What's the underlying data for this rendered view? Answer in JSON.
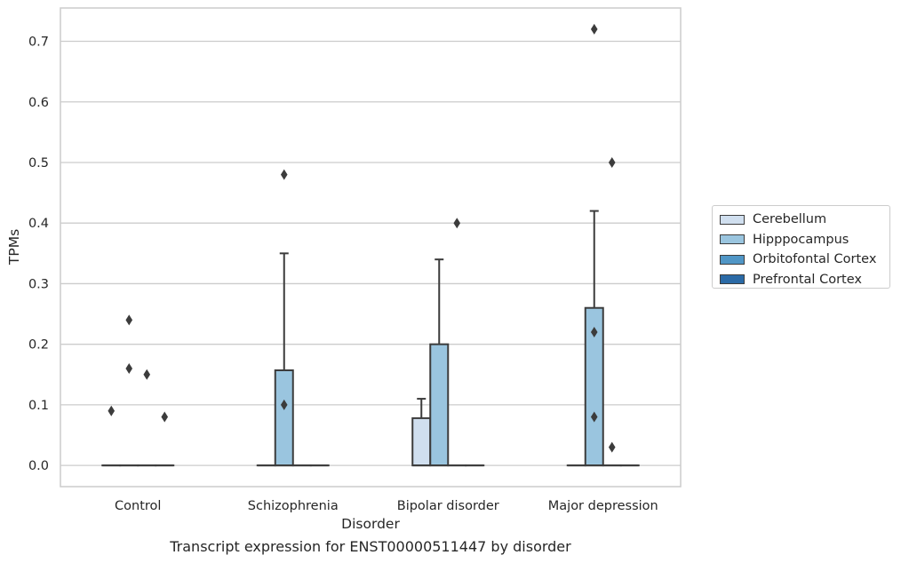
{
  "chart_data": {
    "type": "box",
    "caption": "Transcript expression for ENST00000511447 by disorder",
    "xlabel": "Disorder",
    "ylabel": "TPMs",
    "ylim": [
      -0.035,
      0.755
    ],
    "yticks": [
      0.0,
      0.1,
      0.2,
      0.3,
      0.4,
      0.5,
      0.6,
      0.7
    ],
    "yticklabels": [
      "0.0",
      "0.1",
      "0.2",
      "0.3",
      "0.4",
      "0.5",
      "0.6",
      "0.7"
    ],
    "grid": "horizontal",
    "legend_position": "right",
    "categories": [
      "Control",
      "Schizophrenia",
      "Bipolar disorder",
      "Major depression"
    ],
    "series": [
      {
        "name": "Cerebellum",
        "color": "#d0dfef",
        "boxes": [
          {
            "q1": 0.0,
            "median": 0.0,
            "q3": 0.0,
            "whisker_low": 0.0,
            "whisker_high": 0.0,
            "outliers": [
              0.09
            ]
          },
          {
            "q1": 0.0,
            "median": 0.0,
            "q3": 0.0,
            "whisker_low": 0.0,
            "whisker_high": 0.0,
            "outliers": []
          },
          {
            "q1": 0.0,
            "median": 0.0,
            "q3": 0.078,
            "whisker_low": 0.0,
            "whisker_high": 0.11,
            "outliers": []
          },
          {
            "q1": 0.0,
            "median": 0.0,
            "q3": 0.0,
            "whisker_low": 0.0,
            "whisker_high": 0.0,
            "outliers": []
          }
        ]
      },
      {
        "name": "Hipppocampus",
        "color": "#9ac5df",
        "boxes": [
          {
            "q1": 0.0,
            "median": 0.0,
            "q3": 0.0,
            "whisker_low": 0.0,
            "whisker_high": 0.0,
            "outliers": [
              0.24,
              0.16
            ]
          },
          {
            "q1": 0.0,
            "median": 0.0,
            "q3": 0.157,
            "whisker_low": 0.0,
            "whisker_high": 0.35,
            "outliers": [
              0.1,
              0.48
            ]
          },
          {
            "q1": 0.0,
            "median": 0.0,
            "q3": 0.2,
            "whisker_low": 0.0,
            "whisker_high": 0.34,
            "outliers": []
          },
          {
            "q1": 0.0,
            "median": 0.0,
            "q3": 0.26,
            "whisker_low": 0.0,
            "whisker_high": 0.42,
            "outliers": [
              0.72,
              0.22,
              0.08
            ]
          }
        ]
      },
      {
        "name": "Orbitofontal Cortex",
        "color": "#5096c6",
        "boxes": [
          {
            "q1": 0.0,
            "median": 0.0,
            "q3": 0.0,
            "whisker_low": 0.0,
            "whisker_high": 0.0,
            "outliers": [
              0.15
            ]
          },
          {
            "q1": 0.0,
            "median": 0.0,
            "q3": 0.0,
            "whisker_low": 0.0,
            "whisker_high": 0.0,
            "outliers": []
          },
          {
            "q1": 0.0,
            "median": 0.0,
            "q3": 0.0,
            "whisker_low": 0.0,
            "whisker_high": 0.0,
            "outliers": [
              0.4
            ]
          },
          {
            "q1": 0.0,
            "median": 0.0,
            "q3": 0.0,
            "whisker_low": 0.0,
            "whisker_high": 0.0,
            "outliers": [
              0.5,
              0.03
            ]
          }
        ]
      },
      {
        "name": "Prefrontal Cortex",
        "color": "#2b6aa6",
        "boxes": [
          {
            "q1": 0.0,
            "median": 0.0,
            "q3": 0.0,
            "whisker_low": 0.0,
            "whisker_high": 0.0,
            "outliers": [
              0.08
            ]
          },
          {
            "q1": 0.0,
            "median": 0.0,
            "q3": 0.0,
            "whisker_low": 0.0,
            "whisker_high": 0.0,
            "outliers": []
          },
          {
            "q1": 0.0,
            "median": 0.0,
            "q3": 0.0,
            "whisker_low": 0.0,
            "whisker_high": 0.0,
            "outliers": []
          },
          {
            "q1": 0.0,
            "median": 0.0,
            "q3": 0.0,
            "whisker_low": 0.0,
            "whisker_high": 0.0,
            "outliers": []
          }
        ]
      }
    ]
  }
}
